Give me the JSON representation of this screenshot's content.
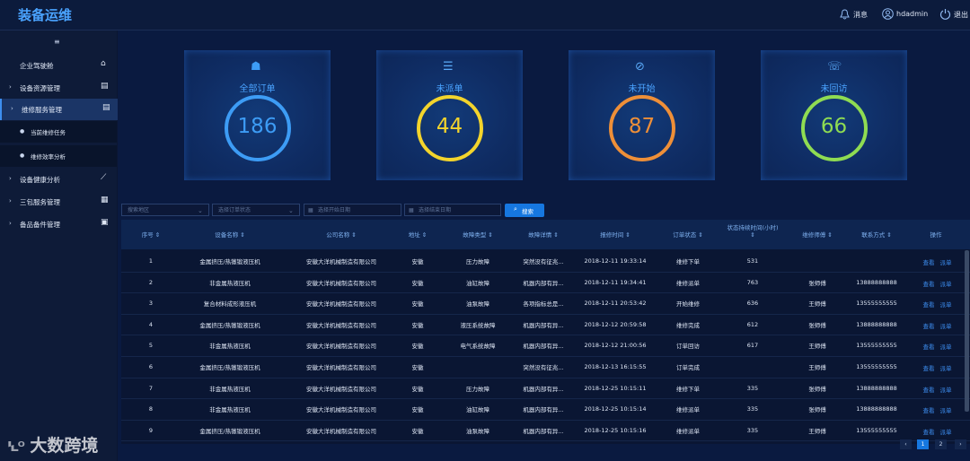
{
  "header": {
    "title": "装备运维",
    "messages": "消息",
    "user": "hdadmin",
    "logout": "退出"
  },
  "sidebar": {
    "items": [
      {
        "label": "企业驾驶舱",
        "level": 1
      },
      {
        "label": "设备资源管理",
        "level": 1
      },
      {
        "label": "维修服务管理",
        "level": 1,
        "active": true
      },
      {
        "label": "当前维修任务",
        "level": 2
      },
      {
        "label": "维修效率分析",
        "level": 2
      },
      {
        "label": "设备健康分析",
        "level": 1
      },
      {
        "label": "三包服务管理",
        "level": 1
      },
      {
        "label": "备品备件管理",
        "level": 1
      }
    ]
  },
  "stats": [
    {
      "label": "全部订单",
      "value": 186,
      "color": "#3d9cf5"
    },
    {
      "label": "未派单",
      "value": 44,
      "color": "#f3d42c"
    },
    {
      "label": "未开始",
      "value": 87,
      "color": "#ee8f38"
    },
    {
      "label": "未回访",
      "value": 66,
      "color": "#8fdc52"
    }
  ],
  "filters": {
    "region": "搜索地区",
    "status": "选择订单状态",
    "start_date": "选择开始日期",
    "end_date": "选择结束日期",
    "search": "搜索"
  },
  "table": {
    "columns": [
      "序号",
      "设备名称",
      "公司名称",
      "地址",
      "故障类型",
      "故障详情",
      "报修时间",
      "订单状态",
      "状态持续时间(小时)",
      "维修师傅",
      "联系方式",
      "操作"
    ],
    "actions": [
      "查看",
      "派单"
    ],
    "rows": [
      [
        1,
        "金属挤压/热镦锻液压机",
        "安徽大洋机械制造有限公司",
        "安徽",
        "压力故障",
        "突然没有征兆...",
        "2018-12-11 19:33:14",
        "维修下单",
        531,
        null,
        null
      ],
      [
        2,
        "非金属热液压机",
        "安徽大洋机械制造有限公司",
        "安徽",
        "油缸故障",
        "机器内部有异...",
        "2018-12-11 19:34:41",
        "维修派单",
        763,
        "张师傅",
        "13888888888"
      ],
      [
        3,
        "复合材料成形液压机",
        "安徽大洋机械制造有限公司",
        "安徽",
        "油泵故障",
        "各项指标总是...",
        "2018-12-11 20:53:42",
        "开始维修",
        636,
        "王师傅",
        "13555555555"
      ],
      [
        4,
        "金属挤压/热镦锻液压机",
        "安徽大洋机械制造有限公司",
        "安徽",
        "液压系统故障",
        "机器内部有异...",
        "2018-12-12 20:59:58",
        "维修完成",
        612,
        "张师傅",
        "13888888888"
      ],
      [
        5,
        "非金属热液压机",
        "安徽大洋机械制造有限公司",
        "安徽",
        "电气系统故障",
        "机器内部有异...",
        "2018-12-12 21:00:56",
        "订单回访",
        617,
        "王师傅",
        "13555555555"
      ],
      [
        6,
        "金属挤压/热镦锻液压机",
        "安徽大洋机械制造有限公司",
        "安徽",
        null,
        "突然没有征兆...",
        "2018-12-13 16:15:55",
        "订单完成",
        null,
        "王师傅",
        "13555555555"
      ],
      [
        7,
        "非金属热液压机",
        "安徽大洋机械制造有限公司",
        "安徽",
        "压力故障",
        "机器内部有异...",
        "2018-12-25 10:15:11",
        "维修下单",
        335,
        "张师傅",
        "13888888888"
      ],
      [
        8,
        "非金属热液压机",
        "安徽大洋机械制造有限公司",
        "安徽",
        "油缸故障",
        "机器内部有异...",
        "2018-12-25 10:15:14",
        "维修派单",
        335,
        "张师傅",
        "13888888888"
      ],
      [
        9,
        "金属挤压/热镦锻液压机",
        "安徽大洋机械制造有限公司",
        "安徽",
        "油泵故障",
        "机器内部有异...",
        "2018-12-25 10:15:16",
        "维修派单",
        335,
        "王师傅",
        "13555555555"
      ]
    ]
  },
  "pagination": {
    "pages": [
      1,
      2
    ],
    "current": 1
  },
  "watermark": "大数跨境"
}
